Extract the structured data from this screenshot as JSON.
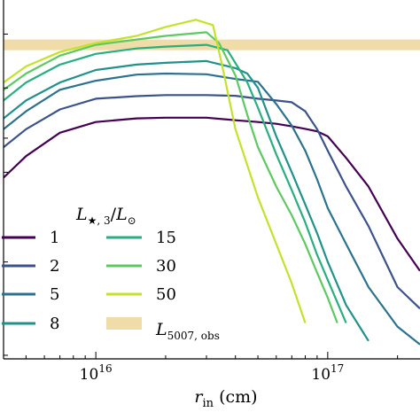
{
  "chart_data": {
    "type": "line",
    "title": "",
    "xlabel_main": "r",
    "xlabel_sub": "in",
    "xlabel_unit": " (cm)",
    "ylabel": "",
    "x_scale": "log",
    "y_scale": "log",
    "xlim": [
      4000000000000000.0,
      2.5e+17
    ],
    "ylim_norm": [
      0,
      1
    ],
    "grid": false,
    "legend_placement": "lower-left",
    "legend_title": {
      "main": "L",
      "sub": "★, 3",
      "div": "/",
      "main2": "L",
      "sub2": "⊙"
    },
    "x_ticks": [
      {
        "value": 1e+16,
        "base": "10",
        "exp": "16"
      },
      {
        "value": 1e+17,
        "base": "10",
        "exp": "17"
      }
    ],
    "observed_band": {
      "label_main": "L",
      "label_sub": "5007, obs",
      "y_center_norm": 0.875,
      "color": "#f0dca8"
    },
    "series": [
      {
        "name": "1",
        "color": "#440154",
        "x": [
          4000000000000000.0,
          5000000000000000.0,
          7000000000000000.0,
          1e+16,
          1.5e+16,
          2e+16,
          3e+16,
          4e+16,
          5e+16,
          6e+16,
          7e+16,
          8e+16,
          9e+16,
          1e+17,
          1.2e+17,
          1.5e+17,
          2e+17,
          2.5e+17
        ],
        "y": [
          0.505,
          0.565,
          0.63,
          0.66,
          0.67,
          0.672,
          0.672,
          0.665,
          0.66,
          0.655,
          0.648,
          0.641,
          0.634,
          0.62,
          0.56,
          0.48,
          0.335,
          0.245
        ]
      },
      {
        "name": "2",
        "color": "#3b528b",
        "x": [
          4000000000000000.0,
          5000000000000000.0,
          7000000000000000.0,
          1e+16,
          1.5e+16,
          2e+16,
          3e+16,
          4e+16,
          5e+16,
          6e+16,
          7e+16,
          8e+16,
          9e+16,
          1e+17,
          1.2e+17,
          1.5e+17,
          2e+17,
          2.5e+17
        ],
        "y": [
          0.59,
          0.64,
          0.695,
          0.725,
          0.732,
          0.735,
          0.735,
          0.733,
          0.725,
          0.72,
          0.715,
          0.69,
          0.64,
          0.58,
          0.48,
          0.37,
          0.2,
          0.14
        ]
      },
      {
        "name": "5",
        "color": "#2c728e",
        "x": [
          4000000000000000.0,
          5000000000000000.0,
          7000000000000000.0,
          1e+16,
          1.5e+16,
          2e+16,
          3e+16,
          4e+16,
          5e+16,
          6e+16,
          7e+16,
          8e+16,
          9e+16,
          1e+17,
          1.2e+17,
          1.5e+17,
          2e+17,
          2.5e+17
        ],
        "y": [
          0.64,
          0.69,
          0.75,
          0.775,
          0.792,
          0.795,
          0.793,
          0.78,
          0.772,
          0.71,
          0.65,
          0.58,
          0.5,
          0.42,
          0.32,
          0.2,
          0.09,
          0.04
        ]
      },
      {
        "name": "8",
        "color": "#21918c",
        "x": [
          4000000000000000.0,
          5000000000000000.0,
          7000000000000000.0,
          1e+16,
          1.5e+16,
          2e+16,
          3e+16,
          4e+16,
          4.5e+16,
          5e+16,
          6e+16,
          7e+16,
          8e+16,
          9e+16,
          1e+17,
          1.2e+17,
          1.5e+17
        ],
        "y": [
          0.67,
          0.72,
          0.77,
          0.805,
          0.82,
          0.825,
          0.83,
          0.81,
          0.795,
          0.755,
          0.62,
          0.52,
          0.43,
          0.35,
          0.27,
          0.15,
          0.05
        ]
      },
      {
        "name": "15",
        "color": "#28ae80",
        "x": [
          4000000000000000.0,
          5000000000000000.0,
          7000000000000000.0,
          1e+16,
          1.5e+16,
          2e+16,
          3e+16,
          3.7e+16,
          4.5e+16,
          5e+16,
          6e+16,
          7e+16,
          8e+16,
          9e+16,
          1e+17,
          1.2e+17
        ],
        "y": [
          0.72,
          0.77,
          0.82,
          0.85,
          0.865,
          0.87,
          0.875,
          0.86,
          0.77,
          0.7,
          0.57,
          0.47,
          0.38,
          0.29,
          0.22,
          0.1
        ]
      },
      {
        "name": "30",
        "color": "#5ec962",
        "x": [
          4000000000000000.0,
          5000000000000000.0,
          7000000000000000.0,
          1e+16,
          1.5e+16,
          2e+16,
          3e+16,
          3.4e+16,
          4e+16,
          4.5e+16,
          5e+16,
          6e+16,
          7e+16,
          8e+16,
          9e+16,
          1e+17,
          1.1e+17
        ],
        "y": [
          0.75,
          0.795,
          0.845,
          0.875,
          0.89,
          0.9,
          0.91,
          0.88,
          0.79,
          0.68,
          0.59,
          0.48,
          0.4,
          0.32,
          0.24,
          0.17,
          0.1
        ]
      },
      {
        "name": "50",
        "color": "#c4e22b",
        "x": [
          4000000000000000.0,
          5000000000000000.0,
          7000000000000000.0,
          1e+16,
          1.5e+16,
          2e+16,
          2.7e+16,
          3.2e+16,
          3.5e+16,
          4e+16,
          5e+16,
          6e+16,
          7e+16,
          8e+16
        ],
        "y": [
          0.77,
          0.815,
          0.855,
          0.88,
          0.9,
          0.925,
          0.945,
          0.93,
          0.82,
          0.64,
          0.45,
          0.32,
          0.21,
          0.1
        ]
      }
    ]
  }
}
